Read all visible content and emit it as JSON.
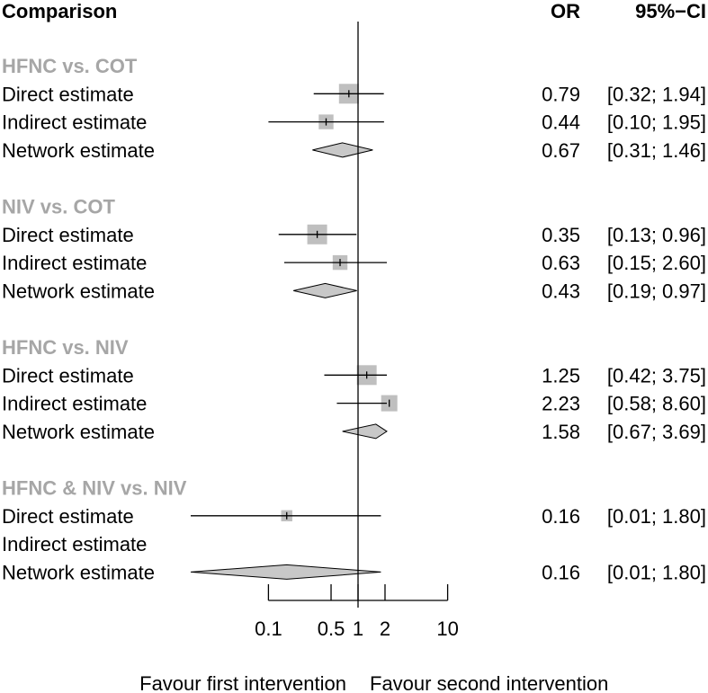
{
  "header": {
    "comparison": "Comparison",
    "or": "OR",
    "ci": "95%−CI"
  },
  "colors": {
    "group_heading": "#a6a6a6",
    "square_fill": "#bfbfbf",
    "diamond_fill": "#c8c8c8",
    "line": "#000000"
  },
  "chart_data": {
    "type": "forest",
    "x_scale": "log",
    "null_value": 1,
    "xticks": [
      0.1,
      0.5,
      1,
      2,
      10
    ],
    "xtick_labels": [
      "0.1",
      "0.5",
      "1",
      "2",
      "10"
    ],
    "xlim": [
      0.1,
      10
    ],
    "favours_left": "Favour first intervention",
    "favours_right": "Favour second intervention",
    "groups": [
      {
        "title": "HFNC vs. COT",
        "rows": [
          {
            "label": "Direct estimate",
            "kind": "square",
            "or": 0.79,
            "lo": 0.32,
            "hi": 1.94,
            "or_text": "0.79",
            "ci_text": "[0.32; 1.94]",
            "weight": 1.0
          },
          {
            "label": "Indirect estimate",
            "kind": "square",
            "or": 0.44,
            "lo": 0.1,
            "hi": 1.95,
            "or_text": "0.44",
            "ci_text": "[0.10; 1.95]",
            "weight": 0.65
          },
          {
            "label": "Network estimate",
            "kind": "diamond",
            "or": 0.67,
            "lo": 0.31,
            "hi": 1.46,
            "or_text": "0.67",
            "ci_text": "[0.31; 1.46]"
          }
        ]
      },
      {
        "title": "NIV vs. COT",
        "rows": [
          {
            "label": "Direct estimate",
            "kind": "square",
            "or": 0.35,
            "lo": 0.13,
            "hi": 0.96,
            "or_text": "0.35",
            "ci_text": "[0.13; 0.96]",
            "weight": 1.0
          },
          {
            "label": "Indirect estimate",
            "kind": "square",
            "or": 0.63,
            "lo": 0.15,
            "hi": 2.6,
            "or_text": "0.63",
            "ci_text": "[0.15; 2.60]",
            "weight": 0.65
          },
          {
            "label": "Network estimate",
            "kind": "diamond",
            "or": 0.43,
            "lo": 0.19,
            "hi": 0.97,
            "or_text": "0.43",
            "ci_text": "[0.19; 0.97]"
          }
        ]
      },
      {
        "title": "HFNC vs. NIV",
        "rows": [
          {
            "label": "Direct estimate",
            "kind": "square",
            "or": 1.25,
            "lo": 0.42,
            "hi": 3.75,
            "or_text": "1.25",
            "ci_text": "[0.42; 3.75]",
            "weight": 1.0
          },
          {
            "label": "Indirect estimate",
            "kind": "square",
            "or": 2.23,
            "lo": 0.58,
            "hi": 8.6,
            "or_text": "2.23",
            "ci_text": "[0.58; 8.60]",
            "weight": 0.75
          },
          {
            "label": "Network estimate",
            "kind": "diamond",
            "or": 1.58,
            "lo": 0.67,
            "hi": 3.69,
            "or_text": "1.58",
            "ci_text": "[0.67; 3.69]"
          }
        ]
      },
      {
        "title": "HFNC & NIV vs. NIV",
        "rows": [
          {
            "label": "Direct estimate",
            "kind": "square",
            "or": 0.16,
            "lo": 0.01,
            "hi": 1.8,
            "or_text": "0.16",
            "ci_text": "[0.01; 1.80]",
            "weight": 0.4
          },
          {
            "label": "Indirect estimate",
            "kind": "none"
          },
          {
            "label": "Network estimate",
            "kind": "diamond",
            "or": 0.16,
            "lo": 0.01,
            "hi": 1.8,
            "or_text": "0.16",
            "ci_text": "[0.01; 1.80]"
          }
        ]
      }
    ]
  }
}
